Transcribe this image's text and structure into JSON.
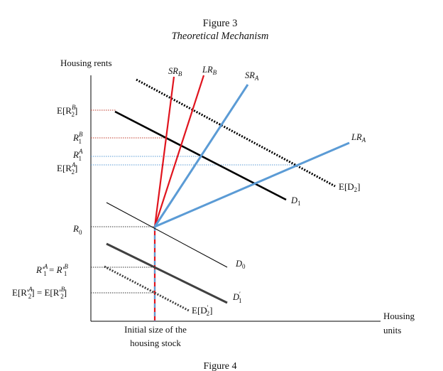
{
  "figure": {
    "number_label": "Figure 3",
    "subtitle": "Theoretical Mechanism",
    "next_figure_label": "Figure 4"
  },
  "axes": {
    "y_title": "Housing rents",
    "x_title_line1": "Housing",
    "x_title_line2": "units",
    "x_marker_line1": "Initial size of the",
    "x_marker_line2": "housing stock"
  },
  "y_ticks": [
    "E[R",
    "R",
    "R",
    "E[R",
    "R",
    "R'",
    "E[R'"
  ],
  "curve_labels": {
    "sr_b": "SR",
    "sr_b_sub": "B",
    "lr_b": "LR",
    "lr_b_sub": "B",
    "sr_a": "SR",
    "sr_a_sub": "A",
    "lr_a": "LR",
    "lr_a_sub": "A",
    "d1": "D",
    "d1_sub": "1",
    "d0": "D",
    "d0_sub": "0",
    "d1p": "D",
    "d1p_sub": "1",
    "e_d2": "E[D",
    "e_d2_sub": "2",
    "e_d2_close": "]",
    "e_d2p": "E[D",
    "e_d2p_sub": "2",
    "e_d2p_close": "]"
  },
  "colors": {
    "scenario_b": "#e0141e",
    "scenario_a": "#5b9bd5",
    "demand_new": "#000000",
    "demand_old": "#000000",
    "demand_fall": "#404040"
  }
}
